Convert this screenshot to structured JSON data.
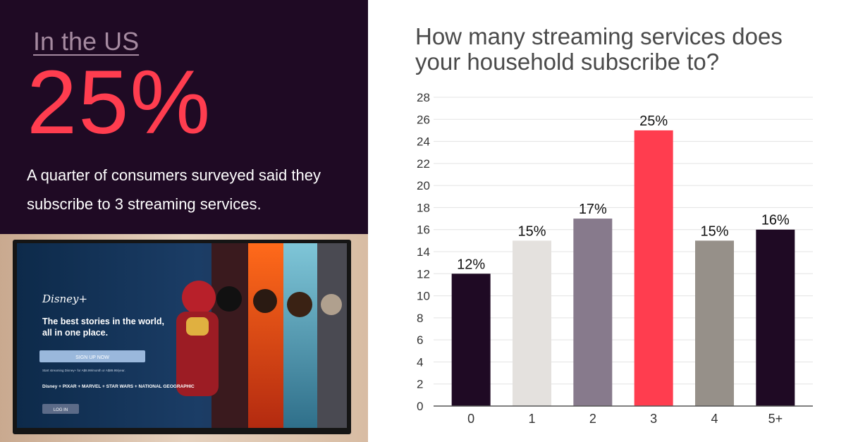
{
  "panel": {
    "region": "In the US",
    "stat": "25%",
    "caption": "A quarter of consumers surveyed said they subscribe to 3 streaming services."
  },
  "photo": {
    "brand": "Disney+",
    "headline": "The best stories in the world, all in one place.",
    "signup_label": "SIGN UP NOW",
    "fine_print": "Start streaming Disney+ for A$8.99/month or A$89.99/year.",
    "partner_brands": [
      "Disney",
      "PIXAR",
      "MARVEL",
      "STAR WARS",
      "NATIONAL GEOGRAPHIC"
    ],
    "login_label": "LOG IN"
  },
  "chart_data": {
    "type": "bar",
    "title": "How many streaming services does your household subscribe to?",
    "categories": [
      "0",
      "1",
      "2",
      "3",
      "4",
      "5+"
    ],
    "values": [
      12,
      15,
      17,
      25,
      15,
      16
    ],
    "data_labels": [
      "12%",
      "15%",
      "17%",
      "25%",
      "15%",
      "16%"
    ],
    "bar_colors": [
      "#1f0a24",
      "#e4e1de",
      "#877a8c",
      "#ff3d4f",
      "#969089",
      "#1f0a24"
    ],
    "ylim": [
      0,
      28
    ],
    "yticks": [
      0,
      2,
      4,
      6,
      8,
      10,
      12,
      14,
      16,
      18,
      20,
      22,
      24,
      26,
      28
    ],
    "grid": true,
    "legend": "none"
  }
}
